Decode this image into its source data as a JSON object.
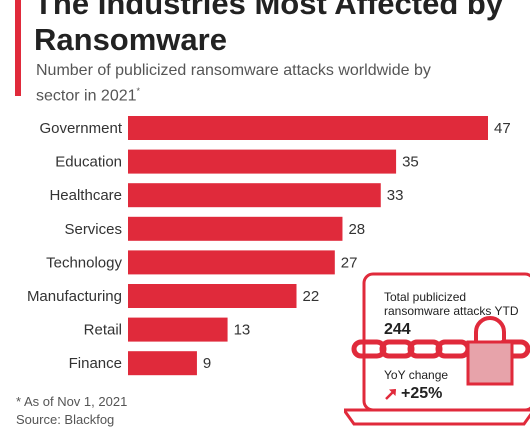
{
  "header": {
    "title": "The Industries Most Affected by Ransomware",
    "subtitle": "Number of publicized ransomware attacks worldwide by sector in 2021",
    "subtitle_mark": "*"
  },
  "chart_data": {
    "type": "bar",
    "orientation": "horizontal",
    "categories": [
      "Government",
      "Education",
      "Healthcare",
      "Services",
      "Technology",
      "Manufacturing",
      "Retail",
      "Finance"
    ],
    "values": [
      47,
      35,
      33,
      28,
      27,
      22,
      13,
      9
    ],
    "title": "",
    "xlabel": "",
    "ylabel": "",
    "xlim": [
      0,
      47
    ],
    "grid": false,
    "colors": {
      "bar": "#e02a3b"
    }
  },
  "callout": {
    "total_label": "Total publicized ransomware attacks YTD",
    "total_value": "244",
    "yoy_label": "YoY change",
    "yoy_value": "+25%"
  },
  "footer": {
    "note": "* As of Nov 1, 2021",
    "source": "Source: Blackfog"
  },
  "icons": [
    "arrow-up-right-icon",
    "laptop-icon",
    "padlock-icon",
    "chain-icon"
  ],
  "colors": {
    "accent": "#e02a3b",
    "text": "#222222"
  }
}
